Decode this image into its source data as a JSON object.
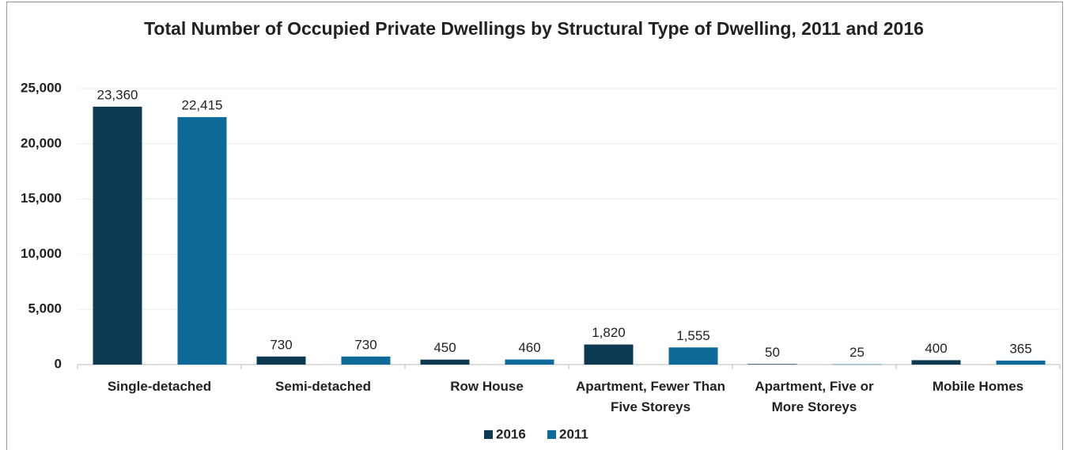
{
  "chart_data": {
    "type": "bar",
    "title": "Total Number of Occupied Private Dwellings by Structural Type of Dwelling, 2011 and 2016",
    "categories": [
      "Single-detached",
      "Semi-detached",
      "Row House",
      "Apartment, Fewer Than Five Storeys",
      "Apartment, Five or More Storeys",
      "Mobile Homes"
    ],
    "series": [
      {
        "name": "2016",
        "color": "#0d3a52",
        "values": [
          23360,
          730,
          450,
          1820,
          50,
          400
        ],
        "value_labels": [
          "23,360",
          "730",
          "450",
          "1,820",
          "50",
          "400"
        ]
      },
      {
        "name": "2011",
        "color": "#0e6a99",
        "values": [
          22415,
          730,
          460,
          1555,
          25,
          365
        ],
        "value_labels": [
          "22,415",
          "730",
          "460",
          "1,555",
          "25",
          "365"
        ]
      }
    ],
    "ylim": [
      0,
      25000
    ],
    "yticks": [
      0,
      {
        "value": 5000,
        "label": "5,000"
      },
      {
        "value": 10000,
        "label": "10,000"
      },
      {
        "value": 15000,
        "label": "15,000"
      },
      {
        "value": 20000,
        "label": "20,000"
      },
      {
        "value": 25000,
        "label": "25,000"
      }
    ],
    "grid": true,
    "legend": "bottom"
  }
}
